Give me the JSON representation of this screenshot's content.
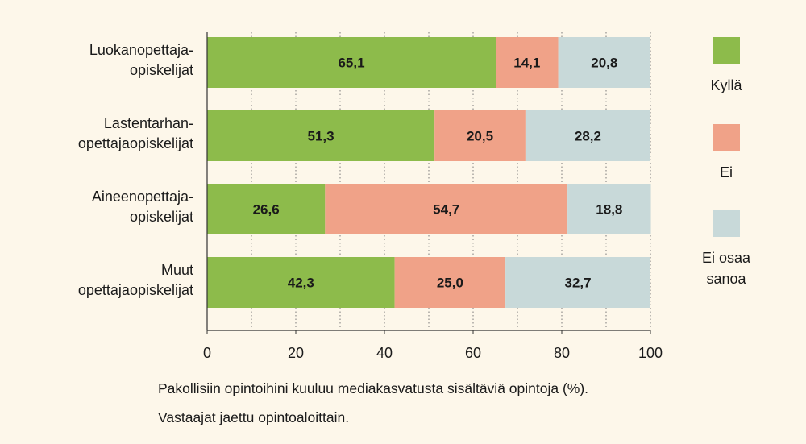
{
  "chart_data": {
    "type": "bar",
    "orientation": "horizontal",
    "stacked": true,
    "categories": [
      [
        "Luokanopettaja-",
        "opiskelijat"
      ],
      [
        "Lastentarhan-",
        "opettajaopiskelijat"
      ],
      [
        "Aineenopettaja-",
        "opiskelijat"
      ],
      [
        "Muut",
        "opettajaopiskelijat"
      ]
    ],
    "series": [
      {
        "name": "Kyllä",
        "color": "#8dbb4b",
        "values": [
          65.1,
          51.3,
          26.6,
          42.3
        ],
        "labels": [
          "65,1",
          "51,3",
          "26,6",
          "42,3"
        ]
      },
      {
        "name": "Ei",
        "color": "#f0a288",
        "values": [
          14.1,
          20.5,
          54.7,
          25.0
        ],
        "labels": [
          "14,1",
          "20,5",
          "54,7",
          "25,0"
        ]
      },
      {
        "name": "Ei osaa sanoa",
        "legend_lines": [
          "Ei osaa",
          "sanoa"
        ],
        "color": "#c8d9d9",
        "values": [
          20.8,
          28.2,
          18.8,
          32.7
        ],
        "labels": [
          "20,8",
          "28,2",
          "18,8",
          "32,7"
        ]
      }
    ],
    "xlim": [
      0,
      100
    ],
    "xticks": [
      0,
      20,
      40,
      60,
      80,
      100
    ],
    "grid": "vertical dotted",
    "legend_position": "right"
  },
  "caption": {
    "line1": "Pakollisiin opintoihini kuuluu mediakasvatusta sisältäviä opintoja (%).",
    "line2": "Vastaajat jaettu opintoaloittain."
  }
}
